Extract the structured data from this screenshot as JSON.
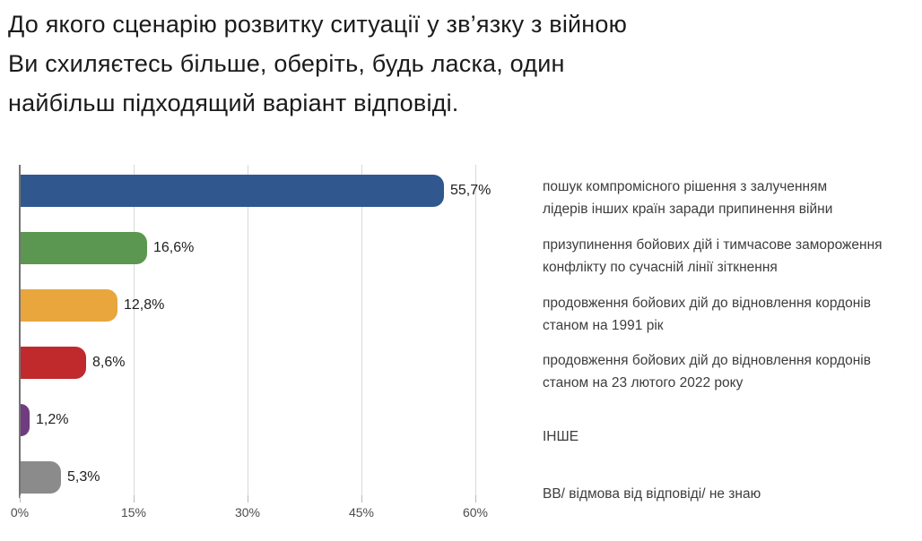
{
  "title": {
    "lines": [
      "До якого сценарію розвитку ситуації у зв’язку з війною",
      "Ви схиляєтесь більше, оберіть, будь ласка, один",
      "найбільш підходящий варіант відповіді."
    ],
    "text": "До якого сценарію розвитку ситуації у зв’язку з війною Ви схиляєтесь більше, оберіть, будь ласка, один найбільш підходящий варіант відповіді."
  },
  "chart_data": {
    "type": "bar",
    "orientation": "horizontal",
    "title": "До якого сценарію розвитку ситуації у зв’язку з війною Ви схиляєтесь більше, оберіть, будь ласка, один найбільш підходящий варіант відповіді.",
    "categories": [
      "пошук компромісного рішення з залученням лідерів інших країн заради припинення війни",
      "призупинення бойових дій і тимчасове замороження конфлікту по сучасній лінії зіткнення",
      "продовження бойових дій до відновлення кордонів станом на 1991 рік",
      "продовження бойових дій до відновлення кордонів станом на 23 лютого 2022 року",
      "ІНШЕ",
      "ВВ/ відмова від відповіді/ не знаю"
    ],
    "values": [
      55.7,
      16.6,
      12.8,
      8.6,
      1.2,
      5.3
    ],
    "value_labels": [
      "55,7%",
      "16,6%",
      "12,8%",
      "8,6%",
      "1,2%",
      "5,3%"
    ],
    "bar_colors": [
      "#30588f",
      "#5b9750",
      "#e8a63d",
      "#c02a2d",
      "#6f3c80",
      "#8b8b8b"
    ],
    "x_ticks": [
      "0%",
      "15%",
      "30%",
      "45%",
      "60%"
    ],
    "x_tick_values": [
      0,
      15,
      30,
      45,
      60
    ],
    "xlim": [
      0,
      63
    ],
    "grid": true,
    "legend_position": "right"
  },
  "legend": {
    "items": [
      {
        "lines": [
          "пошук компромісного рішення з залученням",
          "лідерів інших країн заради припинення війни"
        ]
      },
      {
        "lines": [
          "призупинення бойових дій і тимчасове замороження",
          "конфлікту по сучасній лінії зіткнення"
        ]
      },
      {
        "lines": [
          "продовження бойових дій до відновлення кордонів",
          "станом на 1991 рік"
        ]
      },
      {
        "lines": [
          "продовження бойових дій до відновлення кордонів",
          "станом на 23 лютого 2022 року"
        ]
      },
      {
        "lines": [
          "ІНШЕ"
        ]
      },
      {
        "lines": [
          "ВВ/ відмова від відповіді/ не знаю"
        ]
      }
    ]
  }
}
